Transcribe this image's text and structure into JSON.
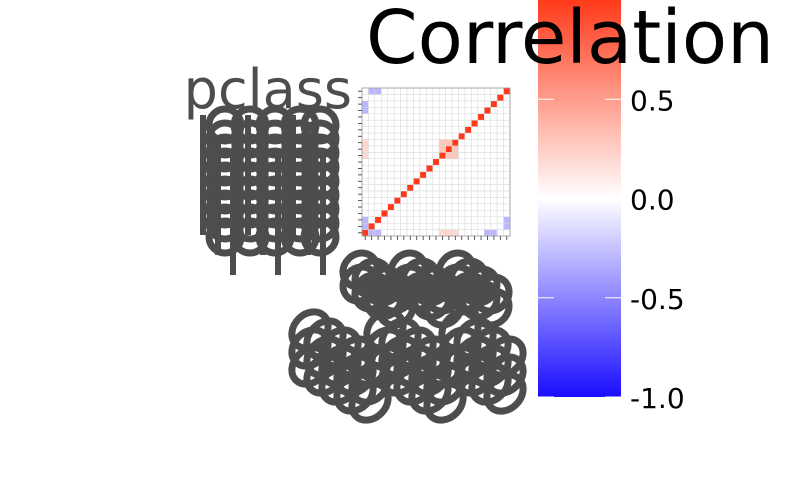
{
  "chart_data": {
    "type": "heatmap",
    "title": "",
    "xlabel": "",
    "ylabel": "",
    "legend": {
      "title": "Correlation",
      "position": "right",
      "range": [
        -1.0,
        1.0
      ],
      "breaks": [
        -1.0,
        -0.5,
        0.0,
        0.5
      ],
      "break_labels": [
        "-1.0",
        "-0.5",
        "0.0",
        "0.5"
      ],
      "low_color": "#1a0dff",
      "mid_color": "#ffffff",
      "high_color": "#ff3a1a"
    },
    "x_tick_labels": [],
    "y_tick_labels": [
      "pclass"
    ],
    "grid": true,
    "n": 23,
    "cells_note_units": "correlation coefficient",
    "matrix": [
      [
        1.0,
        -0.3,
        -0.3,
        0.0,
        0.0,
        0.0,
        0.0,
        0.0,
        0.0,
        0.0,
        0.0,
        0.0,
        0.2,
        0.2,
        0.2,
        0.0,
        0.0,
        0.0,
        0.0,
        -0.3,
        -0.3,
        0.0,
        0.0
      ],
      [
        -0.3,
        1.0,
        0.0,
        0.0,
        0.0,
        0.0,
        0.0,
        0.0,
        0.0,
        0.0,
        0.0,
        0.0,
        0.0,
        0.0,
        0.0,
        0.0,
        0.0,
        0.0,
        0.0,
        0.0,
        0.0,
        0.0,
        -0.3
      ],
      [
        -0.3,
        0.0,
        1.0,
        0.0,
        0.0,
        0.0,
        0.0,
        0.0,
        0.0,
        0.0,
        0.0,
        0.0,
        0.0,
        0.0,
        0.0,
        0.0,
        0.0,
        0.0,
        0.0,
        0.0,
        0.0,
        0.0,
        -0.3
      ],
      [
        0.0,
        0.0,
        0.0,
        1.0,
        0.0,
        0.0,
        0.0,
        0.0,
        0.0,
        0.0,
        0.0,
        0.0,
        0.0,
        0.0,
        0.0,
        0.0,
        0.0,
        0.0,
        0.0,
        0.0,
        0.0,
        0.0,
        0.0
      ],
      [
        0.0,
        0.0,
        0.0,
        0.0,
        1.0,
        0.0,
        0.0,
        0.0,
        0.0,
        0.0,
        0.0,
        0.0,
        0.0,
        0.0,
        0.0,
        0.0,
        0.0,
        0.0,
        0.0,
        0.0,
        0.0,
        0.0,
        0.0
      ],
      [
        0.0,
        0.0,
        0.0,
        0.0,
        0.0,
        1.0,
        0.0,
        0.0,
        0.0,
        0.0,
        0.0,
        0.0,
        0.0,
        0.0,
        0.0,
        0.0,
        0.0,
        0.0,
        0.0,
        0.0,
        0.0,
        0.0,
        0.0
      ],
      [
        0.0,
        0.0,
        0.0,
        0.0,
        0.0,
        0.0,
        1.0,
        0.0,
        0.0,
        0.0,
        0.0,
        0.0,
        0.0,
        0.0,
        0.0,
        0.0,
        0.0,
        0.0,
        0.0,
        0.0,
        0.0,
        0.0,
        0.0
      ],
      [
        0.0,
        0.0,
        0.0,
        0.0,
        0.0,
        0.0,
        0.0,
        1.0,
        0.0,
        0.0,
        0.0,
        0.0,
        0.0,
        0.0,
        0.0,
        0.0,
        0.0,
        0.0,
        0.0,
        0.0,
        0.0,
        0.0,
        0.0
      ],
      [
        0.0,
        0.0,
        0.0,
        0.0,
        0.0,
        0.0,
        0.0,
        0.0,
        1.0,
        0.0,
        0.0,
        0.0,
        0.0,
        0.0,
        0.0,
        0.0,
        0.0,
        0.0,
        0.0,
        0.0,
        0.0,
        0.0,
        0.0
      ],
      [
        0.0,
        0.0,
        0.0,
        0.0,
        0.0,
        0.0,
        0.0,
        0.0,
        0.0,
        1.0,
        0.0,
        0.0,
        0.0,
        0.0,
        0.0,
        0.0,
        0.0,
        0.0,
        0.0,
        0.0,
        0.0,
        0.0,
        0.0
      ],
      [
        0.0,
        0.0,
        0.0,
        0.0,
        0.0,
        0.0,
        0.0,
        0.0,
        0.0,
        0.0,
        1.0,
        0.0,
        0.0,
        0.0,
        0.0,
        0.0,
        0.0,
        0.0,
        0.0,
        0.0,
        0.0,
        0.0,
        0.0
      ],
      [
        0.0,
        0.0,
        0.0,
        0.0,
        0.0,
        0.0,
        0.0,
        0.0,
        0.0,
        0.0,
        0.0,
        1.0,
        0.0,
        0.0,
        0.0,
        0.0,
        0.0,
        0.0,
        0.0,
        0.0,
        0.0,
        0.0,
        0.0
      ],
      [
        0.2,
        0.0,
        0.0,
        0.0,
        0.0,
        0.0,
        0.0,
        0.0,
        0.0,
        0.0,
        0.0,
        0.0,
        1.0,
        0.3,
        0.3,
        0.0,
        0.0,
        0.0,
        0.0,
        0.0,
        0.0,
        0.0,
        0.0
      ],
      [
        0.2,
        0.0,
        0.0,
        0.0,
        0.0,
        0.0,
        0.0,
        0.0,
        0.0,
        0.0,
        0.0,
        0.0,
        0.3,
        1.0,
        0.3,
        0.0,
        0.0,
        0.0,
        0.0,
        0.0,
        0.0,
        0.0,
        0.0
      ],
      [
        0.2,
        0.0,
        0.0,
        0.0,
        0.0,
        0.0,
        0.0,
        0.0,
        0.0,
        0.0,
        0.0,
        0.0,
        0.3,
        0.3,
        1.0,
        0.0,
        0.0,
        0.0,
        0.0,
        0.0,
        0.0,
        0.0,
        0.0
      ],
      [
        0.0,
        0.0,
        0.0,
        0.0,
        0.0,
        0.0,
        0.0,
        0.0,
        0.0,
        0.0,
        0.0,
        0.0,
        0.0,
        0.0,
        0.0,
        1.0,
        0.0,
        0.0,
        0.0,
        0.0,
        0.0,
        0.0,
        0.0
      ],
      [
        0.0,
        0.0,
        0.0,
        0.0,
        0.0,
        0.0,
        0.0,
        0.0,
        0.0,
        0.0,
        0.0,
        0.0,
        0.0,
        0.0,
        0.0,
        0.0,
        1.0,
        0.0,
        0.0,
        0.0,
        0.0,
        0.0,
        0.0
      ],
      [
        0.0,
        0.0,
        0.0,
        0.0,
        0.0,
        0.0,
        0.0,
        0.0,
        0.0,
        0.0,
        0.0,
        0.0,
        0.0,
        0.0,
        0.0,
        0.0,
        0.0,
        1.0,
        0.0,
        0.0,
        0.0,
        0.0,
        0.0
      ],
      [
        0.0,
        0.0,
        0.0,
        0.0,
        0.0,
        0.0,
        0.0,
        0.0,
        0.0,
        0.0,
        0.0,
        0.0,
        0.0,
        0.0,
        0.0,
        0.0,
        0.0,
        0.0,
        1.0,
        0.0,
        0.0,
        0.0,
        0.0
      ],
      [
        -0.3,
        0.0,
        0.0,
        0.0,
        0.0,
        0.0,
        0.0,
        0.0,
        0.0,
        0.0,
        0.0,
        0.0,
        0.0,
        0.0,
        0.0,
        0.0,
        0.0,
        0.0,
        0.0,
        1.0,
        0.0,
        0.0,
        0.0
      ],
      [
        -0.3,
        0.0,
        0.0,
        0.0,
        0.0,
        0.0,
        0.0,
        0.0,
        0.0,
        0.0,
        0.0,
        0.0,
        0.0,
        0.0,
        0.0,
        0.0,
        0.0,
        0.0,
        0.0,
        0.0,
        1.0,
        0.0,
        0.0
      ],
      [
        0.0,
        0.0,
        0.0,
        0.0,
        0.0,
        0.0,
        0.0,
        0.0,
        0.0,
        0.0,
        0.0,
        0.0,
        0.0,
        0.0,
        0.0,
        0.0,
        0.0,
        0.0,
        0.0,
        0.0,
        0.0,
        1.0,
        0.0
      ],
      [
        0.0,
        -0.3,
        -0.3,
        0.0,
        0.0,
        0.0,
        0.0,
        0.0,
        0.0,
        0.0,
        0.0,
        0.0,
        0.0,
        0.0,
        0.0,
        0.0,
        0.0,
        0.0,
        0.0,
        0.0,
        0.0,
        0.0,
        1.0
      ]
    ]
  }
}
